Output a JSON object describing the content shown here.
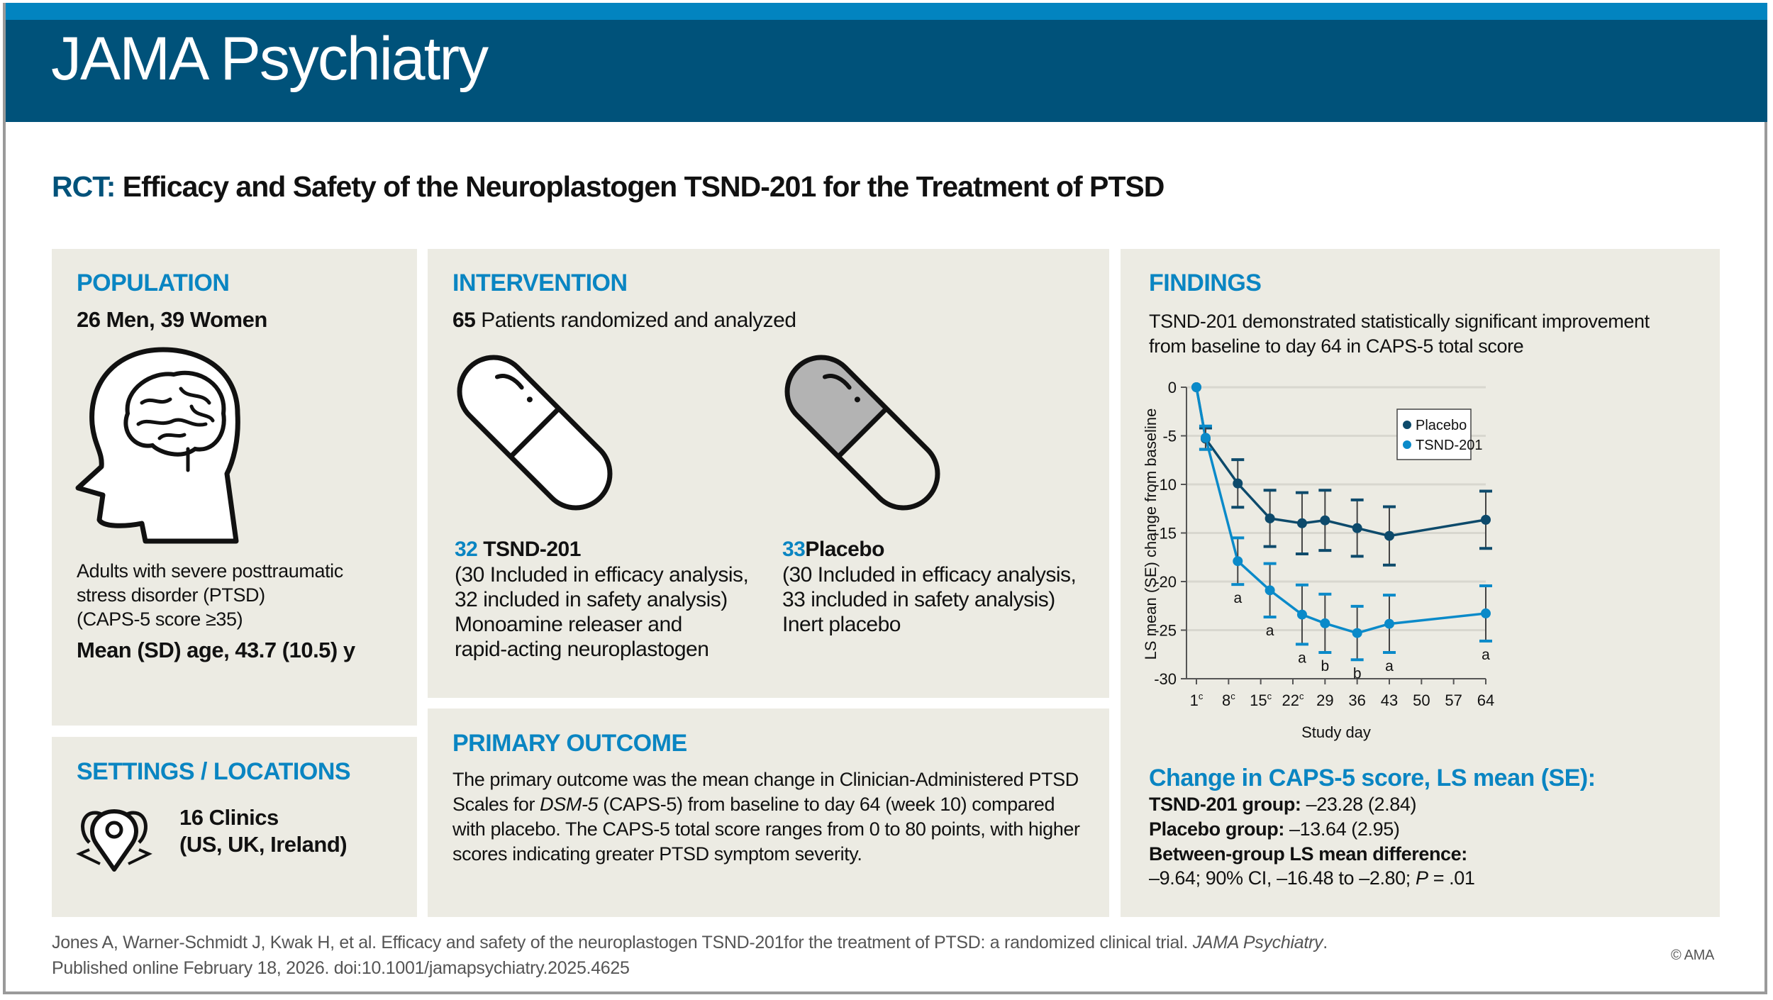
{
  "header": {
    "journal": "JAMA Psychiatry"
  },
  "title": {
    "prefix": "RCT:",
    "text": "Efficacy and Safety of the Neuroplastogen TSND-201 for the Treatment of PTSD"
  },
  "population": {
    "heading": "POPULATION",
    "counts": "26 Men, 39 Women",
    "description": [
      "Adults with severe posttraumatic",
      "stress disorder (PTSD)",
      "(CAPS-5 score ≥35)"
    ],
    "age": "Mean (SD) age, 43.7 (10.5) y",
    "icon": "head-brain-icon"
  },
  "settings": {
    "heading": "SETTINGS / LOCATIONS",
    "lines": [
      "16 Clinics",
      "(US, UK, Ireland)"
    ],
    "icon": "map-pins-icon"
  },
  "intervention": {
    "heading": "INTERVENTION",
    "count": "65",
    "count_label": "Patients randomized and analyzed",
    "arms": [
      {
        "n": "32",
        "name": "TSND-201",
        "lines": [
          "(30 Included in efficacy analysis,",
          "32 included in safety analysis)",
          "Monoamine releaser and",
          "rapid-acting neuroplastogen"
        ],
        "icon": "pill-white-icon"
      },
      {
        "n": "33",
        "name": "Placebo",
        "lines": [
          "(30 Included in efficacy analysis,",
          "33 included in safety analysis)",
          "Inert placebo"
        ],
        "icon": "pill-gray-icon"
      }
    ]
  },
  "primary_outcome": {
    "heading": "PRIMARY OUTCOME",
    "lines": [
      "The primary outcome was the mean change in Clinician-Administered PTSD",
      "Scales for |DSM-5| (CAPS-5) from baseline to day 64 (week 10) compared",
      "with placebo. The CAPS-5 total score ranges from 0 to 80 points, with higher",
      "scores indicating greater PTSD symptom severity."
    ],
    "line2_pre": "Scales for ",
    "line2_italic": "DSM-5",
    "line2_post": " (CAPS-5) from baseline to day 64 (week 10) compared"
  },
  "findings": {
    "heading": "FINDINGS",
    "summary": [
      "TSND-201 demonstrated statistically significant improvement",
      "from baseline to day 64 in CAPS-5 total score"
    ],
    "change_heading": "Change in CAPS-5 score, LS mean (SE):",
    "tsnd_label": "TSND-201 group:",
    "tsnd_value": " –23.28 (2.84)",
    "placebo_label": "Placebo group:",
    "placebo_value": " –13.64 (2.95)",
    "diff_label": "Between-group LS mean difference:",
    "diff_pre": "–9.64; 90% CI, –16.48 to –2.80; ",
    "diff_p": "P",
    "diff_post": " = .01"
  },
  "chart_data": {
    "type": "line",
    "xlabel": "Study day",
    "ylabel": "LS mean (SE) change from baseline",
    "xlim": [
      1,
      64
    ],
    "ylim": [
      -30,
      0
    ],
    "xticks": [
      {
        "value": 1,
        "label": "1",
        "sup": "c"
      },
      {
        "value": 8,
        "label": "8",
        "sup": "c"
      },
      {
        "value": 15,
        "label": "15",
        "sup": "c"
      },
      {
        "value": 22,
        "label": "22",
        "sup": "c"
      },
      {
        "value": 29,
        "label": "29",
        "sup": ""
      },
      {
        "value": 36,
        "label": "36",
        "sup": ""
      },
      {
        "value": 43,
        "label": "43",
        "sup": ""
      },
      {
        "value": 50,
        "label": "50",
        "sup": ""
      },
      {
        "value": 57,
        "label": "57",
        "sup": ""
      },
      {
        "value": 64,
        "label": "64",
        "sup": ""
      }
    ],
    "yticks": [
      0,
      -5,
      -10,
      -15,
      -20,
      -25,
      -30
    ],
    "grid": true,
    "legend_position": "top-right",
    "series": [
      {
        "name": "Placebo",
        "color": "#0d4a6b",
        "x": [
          1,
          3,
          10,
          17,
          24,
          29,
          36,
          43,
          64
        ],
        "y": [
          0,
          -5.3,
          -9.9,
          -13.5,
          -14.0,
          -13.7,
          -14.5,
          -15.3,
          -13.64
        ],
        "se": [
          0,
          1.1,
          2.45,
          2.9,
          3.15,
          3.1,
          2.9,
          3.0,
          2.95
        ]
      },
      {
        "name": "TSND-201",
        "color": "#0a8ac9",
        "x": [
          1,
          3,
          10,
          17,
          24,
          29,
          36,
          43,
          64
        ],
        "y": [
          0,
          -5.2,
          -17.9,
          -20.9,
          -23.4,
          -24.3,
          -25.3,
          -24.35,
          -23.28
        ],
        "se": [
          0,
          1.2,
          2.4,
          2.75,
          3.05,
          3.0,
          2.75,
          2.95,
          2.84
        ],
        "annotations": [
          "",
          "",
          "a",
          "a",
          "a",
          "b",
          "b",
          "a",
          "a"
        ]
      }
    ]
  },
  "footer": {
    "line1_pre": "Jones A, Warner-Schmidt J, Kwak H, et al. Efficacy and safety of the neuroplastogen TSND-201for the treatment of PTSD: a randomized clinical trial. ",
    "line1_italic": "JAMA Psychiatry",
    "line1_post": ".",
    "line2": "Published online February 18, 2026. doi:10.1001/jamapsychiatry.2025.4625",
    "copyright": "© AMA"
  },
  "colors": {
    "header_dark": "#00527a",
    "header_stripe": "#0284c0",
    "accent": "#0a85c2",
    "panel": "#ecebe3"
  }
}
